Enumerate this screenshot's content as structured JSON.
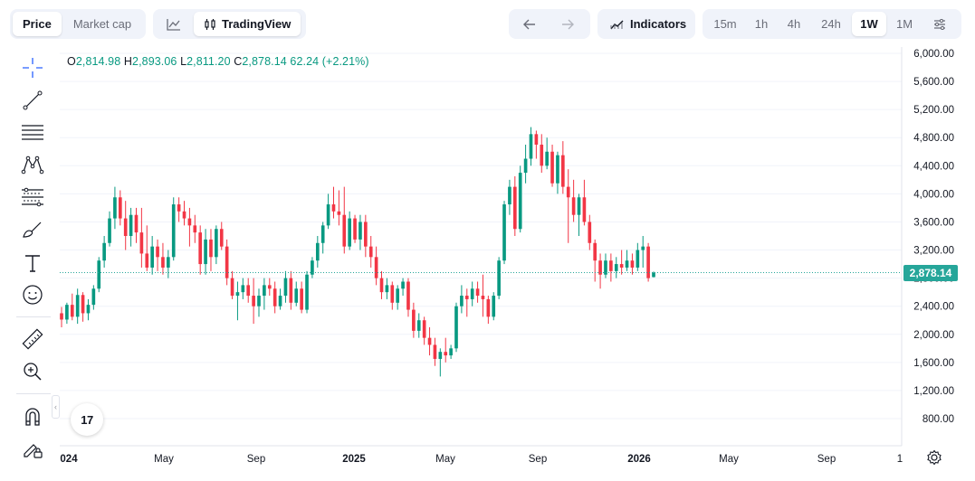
{
  "topbar": {
    "view_tabs": [
      {
        "label": "Price",
        "active": true
      },
      {
        "label": "Market cap",
        "active": false
      }
    ],
    "chart_style": {
      "line_icon": "line-chart-icon",
      "tradingview_label": "TradingView",
      "tradingview_icon": "candles-icon"
    },
    "nav": {
      "back_icon": "arrow-left-icon",
      "forward_icon": "arrow-right-icon"
    },
    "indicators_label": "Indicators",
    "timeframes": [
      "15m",
      "1h",
      "4h",
      "24h",
      "1W",
      "1M"
    ],
    "active_timeframe": "1W",
    "settings_icon": "sliders-icon"
  },
  "toolbar": {
    "tools": [
      "crosshair-icon",
      "trend-line-icon",
      "horizontal-lines-icon",
      "pattern-icon",
      "fib-icon",
      "brush-icon",
      "text-icon",
      "emoji-icon",
      "ruler-icon",
      "zoom-in-icon",
      "magnet-icon",
      "lock-pencil-icon"
    ]
  },
  "legend": {
    "open_key": "O",
    "open": "2,814.98",
    "high_key": "H",
    "high": "2,893.06",
    "low_key": "L",
    "low": "2,811.20",
    "close_key": "C",
    "close": "2,878.14",
    "change": "62.24 (+2.21%)"
  },
  "last_price_label": "2,878.14",
  "logo_text": "17",
  "colors": {
    "up": "#089981",
    "down": "#f23645",
    "last_price": "#26a69a",
    "grid": "#f0f3fa"
  },
  "chart_data": {
    "type": "candlestick",
    "y_ticks": [
      "800.00",
      "1,200.00",
      "1,600.00",
      "2,000.00",
      "2,400.00",
      "2,800.00",
      "3,200.00",
      "3,600.00",
      "4,000.00",
      "4,400.00",
      "4,800.00",
      "5,200.00",
      "5,600.00",
      "6,000.00"
    ],
    "ylim": [
      500,
      6050
    ],
    "x_ticks": [
      "024",
      "May",
      "Sep",
      "2025",
      "May",
      "Sep",
      "2026",
      "May",
      "Sep",
      "1"
    ],
    "last_price": 2878.14,
    "candles": [
      [
        2300,
        2390,
        2100,
        2210
      ],
      [
        2210,
        2450,
        2150,
        2420
      ],
      [
        2420,
        2580,
        2200,
        2250
      ],
      [
        2250,
        2650,
        2150,
        2560
      ],
      [
        2560,
        2600,
        2180,
        2300
      ],
      [
        2300,
        2500,
        2200,
        2420
      ],
      [
        2420,
        2700,
        2350,
        2650
      ],
      [
        2650,
        3100,
        2600,
        3050
      ],
      [
        3050,
        3400,
        2950,
        3300
      ],
      [
        3300,
        3750,
        3250,
        3650
      ],
      [
        3650,
        4100,
        3500,
        3950
      ],
      [
        3950,
        4050,
        3550,
        3650
      ],
      [
        3650,
        3900,
        3200,
        3400
      ],
      [
        3400,
        3800,
        3250,
        3700
      ],
      [
        3700,
        3800,
        3300,
        3450
      ],
      [
        3450,
        3800,
        2950,
        3150
      ],
      [
        3150,
        3550,
        2900,
        2950
      ],
      [
        2950,
        3400,
        2850,
        3250
      ],
      [
        3250,
        3350,
        2900,
        3100
      ],
      [
        3100,
        3300,
        2850,
        2950
      ],
      [
        2950,
        3200,
        2800,
        3100
      ],
      [
        3100,
        3950,
        3050,
        3850
      ],
      [
        3850,
        3950,
        3600,
        3750
      ],
      [
        3750,
        3900,
        3550,
        3650
      ],
      [
        3650,
        3800,
        3250,
        3550
      ],
      [
        3550,
        3700,
        3300,
        3450
      ],
      [
        3450,
        3550,
        2850,
        3000
      ],
      [
        3000,
        3500,
        2850,
        3350
      ],
      [
        3350,
        3500,
        2900,
        3100
      ],
      [
        3100,
        3550,
        3000,
        3500
      ],
      [
        3500,
        3600,
        3200,
        3250
      ],
      [
        3250,
        3350,
        2700,
        2800
      ],
      [
        2800,
        2900,
        2500,
        2550
      ],
      [
        2550,
        2750,
        2200,
        2600
      ],
      [
        2600,
        2800,
        2500,
        2700
      ],
      [
        2700,
        2800,
        2450,
        2550
      ],
      [
        2550,
        2800,
        2150,
        2400
      ],
      [
        2400,
        2650,
        2250,
        2550
      ],
      [
        2550,
        2800,
        2350,
        2700
      ],
      [
        2700,
        2800,
        2550,
        2650
      ],
      [
        2650,
        2750,
        2300,
        2400
      ],
      [
        2400,
        2650,
        2350,
        2550
      ],
      [
        2550,
        2900,
        2450,
        2800
      ],
      [
        2800,
        2900,
        2350,
        2450
      ],
      [
        2450,
        2750,
        2400,
        2650
      ],
      [
        2650,
        2750,
        2300,
        2350
      ],
      [
        2350,
        2900,
        2300,
        2850
      ],
      [
        2850,
        3100,
        2800,
        3050
      ],
      [
        3050,
        3400,
        2950,
        3300
      ],
      [
        3300,
        3600,
        3150,
        3550
      ],
      [
        3550,
        4000,
        3500,
        3850
      ],
      [
        3850,
        4100,
        3650,
        3750
      ],
      [
        3750,
        4050,
        3550,
        3700
      ],
      [
        3700,
        4100,
        3150,
        3250
      ],
      [
        3250,
        3750,
        3200,
        3650
      ],
      [
        3650,
        3700,
        3300,
        3350
      ],
      [
        3350,
        3700,
        3200,
        3600
      ],
      [
        3600,
        3700,
        3100,
        3250
      ],
      [
        3250,
        3400,
        2950,
        3100
      ],
      [
        3100,
        3250,
        2700,
        2800
      ],
      [
        2800,
        2900,
        2500,
        2600
      ],
      [
        2600,
        2800,
        2500,
        2700
      ],
      [
        2700,
        2750,
        2350,
        2450
      ],
      [
        2450,
        2700,
        2350,
        2650
      ],
      [
        2650,
        2800,
        2550,
        2750
      ],
      [
        2750,
        2800,
        2250,
        2350
      ],
      [
        2350,
        2450,
        1950,
        2050
      ],
      [
        2050,
        2300,
        1950,
        2200
      ],
      [
        2200,
        2250,
        1850,
        1950
      ],
      [
        1950,
        2100,
        1700,
        1850
      ],
      [
        1850,
        1950,
        1550,
        1650
      ],
      [
        1650,
        1800,
        1400,
        1750
      ],
      [
        1750,
        1950,
        1600,
        1700
      ],
      [
        1700,
        1850,
        1650,
        1800
      ],
      [
        1800,
        2450,
        1750,
        2400
      ],
      [
        2400,
        2700,
        2300,
        2550
      ],
      [
        2550,
        2650,
        2250,
        2500
      ],
      [
        2500,
        2750,
        2400,
        2650
      ],
      [
        2650,
        2750,
        2450,
        2550
      ],
      [
        2550,
        2850,
        2250,
        2500
      ],
      [
        2500,
        2550,
        2150,
        2250
      ],
      [
        2250,
        2600,
        2200,
        2550
      ],
      [
        2550,
        3100,
        2500,
        3050
      ],
      [
        3050,
        3900,
        3000,
        3850
      ],
      [
        3850,
        4200,
        3700,
        4100
      ],
      [
        4100,
        4250,
        3400,
        3500
      ],
      [
        3500,
        4400,
        3450,
        4300
      ],
      [
        4300,
        4700,
        4150,
        4500
      ],
      [
        4500,
        4950,
        4400,
        4850
      ],
      [
        4850,
        4900,
        4500,
        4700
      ],
      [
        4700,
        4850,
        4300,
        4400
      ],
      [
        4400,
        4800,
        4350,
        4600
      ],
      [
        4600,
        4700,
        4100,
        4150
      ],
      [
        4150,
        4600,
        4000,
        4550
      ],
      [
        4550,
        4750,
        4000,
        4100
      ],
      [
        4100,
        4350,
        3300,
        3950
      ],
      [
        3950,
        4200,
        3600,
        3700
      ],
      [
        3700,
        4000,
        3400,
        3950
      ],
      [
        3950,
        4200,
        3550,
        3600
      ],
      [
        3600,
        3700,
        3200,
        3300
      ],
      [
        3300,
        3350,
        2750,
        3050
      ],
      [
        3050,
        3150,
        2650,
        2850
      ],
      [
        2850,
        3150,
        2800,
        3050
      ],
      [
        3050,
        3150,
        2750,
        2900
      ],
      [
        2900,
        3100,
        2800,
        3000
      ],
      [
        3000,
        3200,
        2850,
        2950
      ],
      [
        2950,
        3200,
        2900,
        3050
      ],
      [
        3050,
        3150,
        2850,
        2950
      ],
      [
        2950,
        3300,
        2900,
        3200
      ],
      [
        3200,
        3400,
        2950,
        3250
      ],
      [
        3250,
        3300,
        2750,
        2800
      ],
      [
        2814.98,
        2893.06,
        2811.2,
        2878.14
      ]
    ]
  }
}
